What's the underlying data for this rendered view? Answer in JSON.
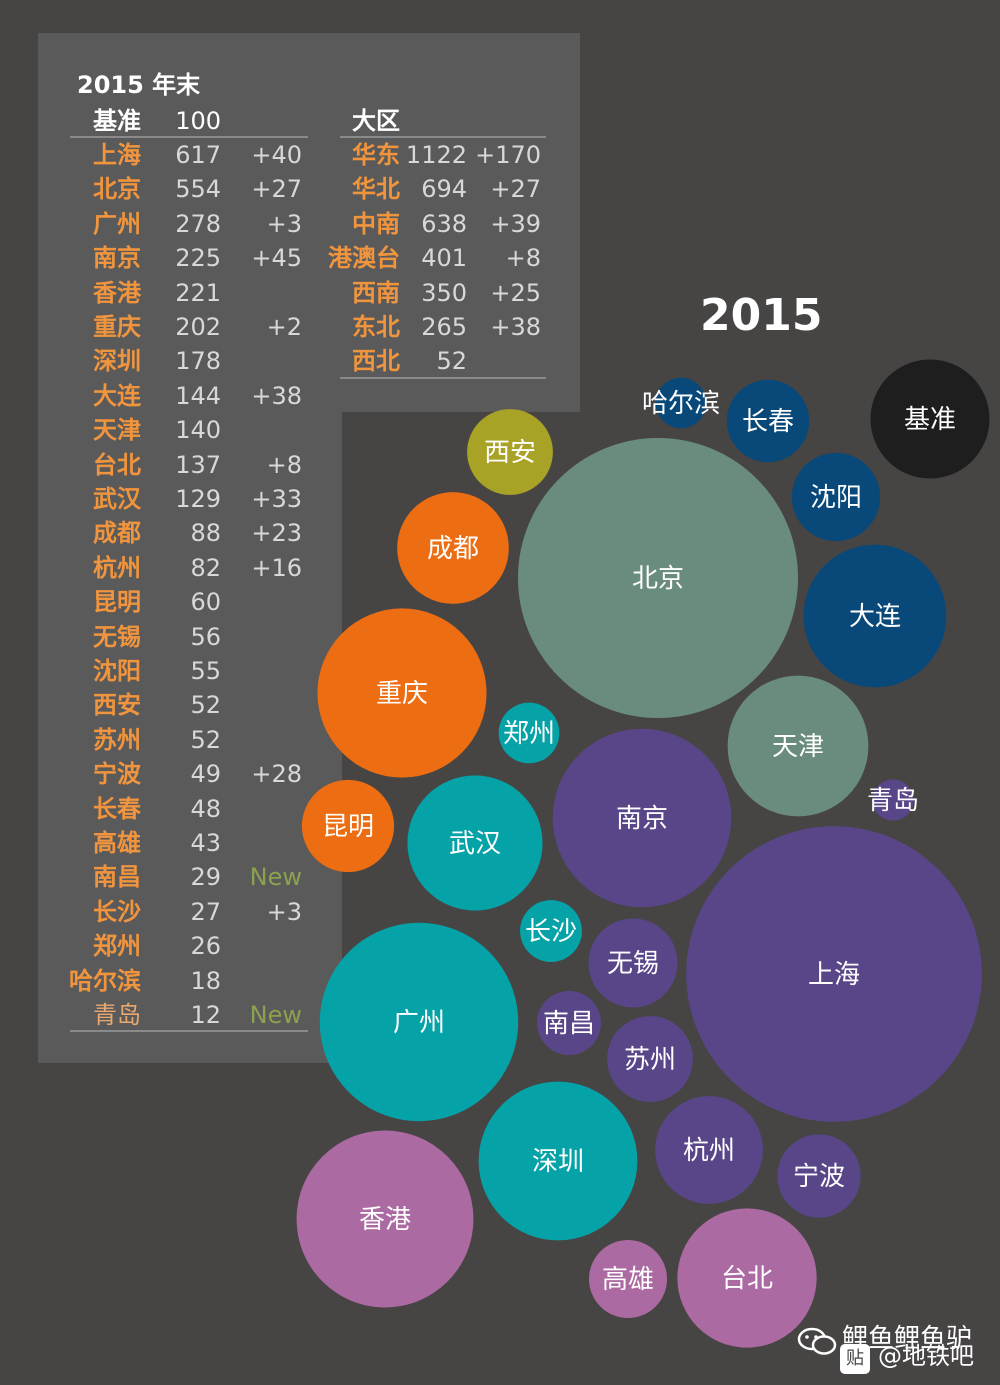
{
  "title": "2015 年末",
  "year_label": "2015",
  "base": {
    "label": "基准",
    "value": "100"
  },
  "region_header": "大区",
  "cities_table": [
    {
      "name": "上海",
      "value": "617",
      "delta": "+40"
    },
    {
      "name": "北京",
      "value": "554",
      "delta": "+27"
    },
    {
      "name": "广州",
      "value": "278",
      "delta": "+3"
    },
    {
      "name": "南京",
      "value": "225",
      "delta": "+45"
    },
    {
      "name": "香港",
      "value": "221",
      "delta": ""
    },
    {
      "name": "重庆",
      "value": "202",
      "delta": "+2"
    },
    {
      "name": "深圳",
      "value": "178",
      "delta": ""
    },
    {
      "name": "大连",
      "value": "144",
      "delta": "+38"
    },
    {
      "name": "天津",
      "value": "140",
      "delta": ""
    },
    {
      "name": "台北",
      "value": "137",
      "delta": "+8"
    },
    {
      "name": "武汉",
      "value": "129",
      "delta": "+33"
    },
    {
      "name": "成都",
      "value": "88",
      "delta": "+23"
    },
    {
      "name": "杭州",
      "value": "82",
      "delta": "+16"
    },
    {
      "name": "昆明",
      "value": "60",
      "delta": ""
    },
    {
      "name": "无锡",
      "value": "56",
      "delta": ""
    },
    {
      "name": "沈阳",
      "value": "55",
      "delta": ""
    },
    {
      "name": "西安",
      "value": "52",
      "delta": ""
    },
    {
      "name": "苏州",
      "value": "52",
      "delta": ""
    },
    {
      "name": "宁波",
      "value": "49",
      "delta": "+28"
    },
    {
      "name": "长春",
      "value": "48",
      "delta": ""
    },
    {
      "name": "高雄",
      "value": "43",
      "delta": ""
    },
    {
      "name": "南昌",
      "value": "29",
      "delta": "New"
    },
    {
      "name": "长沙",
      "value": "27",
      "delta": "+3"
    },
    {
      "name": "郑州",
      "value": "26",
      "delta": ""
    },
    {
      "name": "哈尔滨",
      "value": "18",
      "delta": ""
    },
    {
      "name": "青岛",
      "value": "12",
      "delta": "New"
    }
  ],
  "regions_table": [
    {
      "name": "华东",
      "value": "1122",
      "delta": "+170"
    },
    {
      "name": "华北",
      "value": "694",
      "delta": "+27"
    },
    {
      "name": "中南",
      "value": "638",
      "delta": "+39"
    },
    {
      "name": "港澳台",
      "value": "401",
      "delta": "+8"
    },
    {
      "name": "西南",
      "value": "350",
      "delta": "+25"
    },
    {
      "name": "东北",
      "value": "265",
      "delta": "+38"
    },
    {
      "name": "西北",
      "value": "52",
      "delta": ""
    }
  ],
  "colors": {
    "background": "#474444",
    "panel": "#5a5a5a",
    "city_text": "#f0953e",
    "new_text": "#8aa24e",
    "east": "#584689",
    "north": "#6a8c7c",
    "northeast": "#08497a",
    "central_south": "#05a2a8",
    "southwest": "#ec6d12",
    "northwest": "#a8a226",
    "hk_macau_tw": "#ac6aa2",
    "base": "#1e1e1e"
  },
  "chart_data": {
    "type": "bubble",
    "title": "2015",
    "series": [
      {
        "name": "上海",
        "value": 617,
        "region": "华东"
      },
      {
        "name": "北京",
        "value": 554,
        "region": "华北"
      },
      {
        "name": "广州",
        "value": 278,
        "region": "中南"
      },
      {
        "name": "南京",
        "value": 225,
        "region": "华东"
      },
      {
        "name": "香港",
        "value": 221,
        "region": "港澳台"
      },
      {
        "name": "重庆",
        "value": 202,
        "region": "西南"
      },
      {
        "name": "深圳",
        "value": 178,
        "region": "中南"
      },
      {
        "name": "大连",
        "value": 144,
        "region": "东北"
      },
      {
        "name": "天津",
        "value": 140,
        "region": "华北"
      },
      {
        "name": "台北",
        "value": 137,
        "region": "港澳台"
      },
      {
        "name": "武汉",
        "value": 129,
        "region": "中南"
      },
      {
        "name": "成都",
        "value": 88,
        "region": "西南"
      },
      {
        "name": "杭州",
        "value": 82,
        "region": "华东"
      },
      {
        "name": "昆明",
        "value": 60,
        "region": "西南"
      },
      {
        "name": "无锡",
        "value": 56,
        "region": "华东"
      },
      {
        "name": "沈阳",
        "value": 55,
        "region": "东北"
      },
      {
        "name": "西安",
        "value": 52,
        "region": "西北"
      },
      {
        "name": "苏州",
        "value": 52,
        "region": "华东"
      },
      {
        "name": "宁波",
        "value": 49,
        "region": "华东"
      },
      {
        "name": "长春",
        "value": 48,
        "region": "东北"
      },
      {
        "name": "高雄",
        "value": 43,
        "region": "港澳台"
      },
      {
        "name": "南昌",
        "value": 29,
        "region": "华东"
      },
      {
        "name": "长沙",
        "value": 27,
        "region": "中南"
      },
      {
        "name": "郑州",
        "value": 26,
        "region": "中南"
      },
      {
        "name": "哈尔滨",
        "value": 18,
        "region": "东北"
      },
      {
        "name": "青岛",
        "value": 12,
        "region": "华东"
      },
      {
        "name": "基准",
        "value": 100,
        "region": "基准"
      }
    ]
  },
  "watermark": {
    "line1": "鲤鱼鲤鱼驴",
    "line2": "@地铁吧",
    "badge": "贴"
  }
}
